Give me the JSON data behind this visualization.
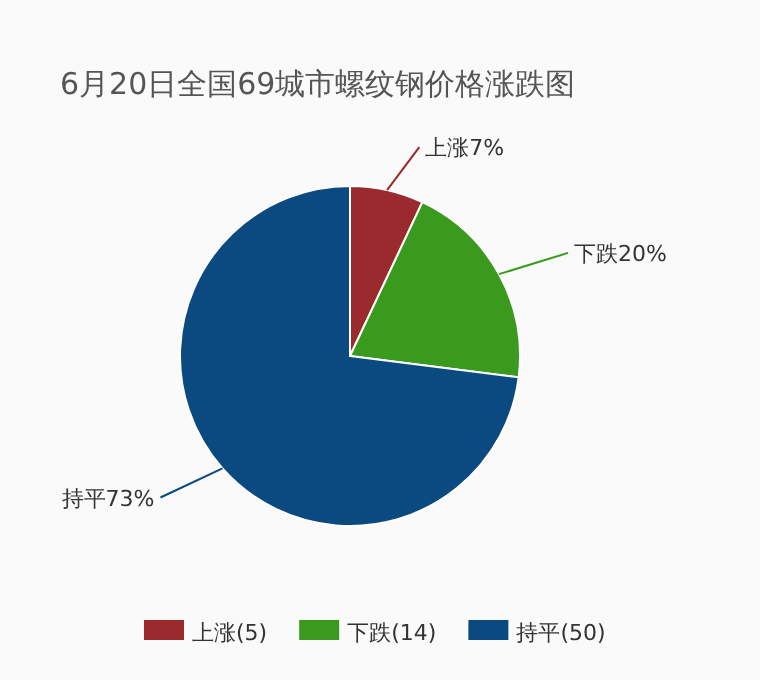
{
  "chart_data": {
    "type": "pie",
    "title": "6月20日全国69城市螺纹钢价格涨跌图",
    "categories": [
      "上涨(5)",
      "下跌(14)",
      "持平(50)"
    ],
    "values": [
      7,
      20,
      73
    ],
    "value_labels": [
      "上涨7%",
      "下跌20%",
      "持平73%"
    ],
    "colors": [
      "#9b2a2e",
      "#3a9a1e",
      "#0a4a80"
    ],
    "legend": "bottom"
  }
}
